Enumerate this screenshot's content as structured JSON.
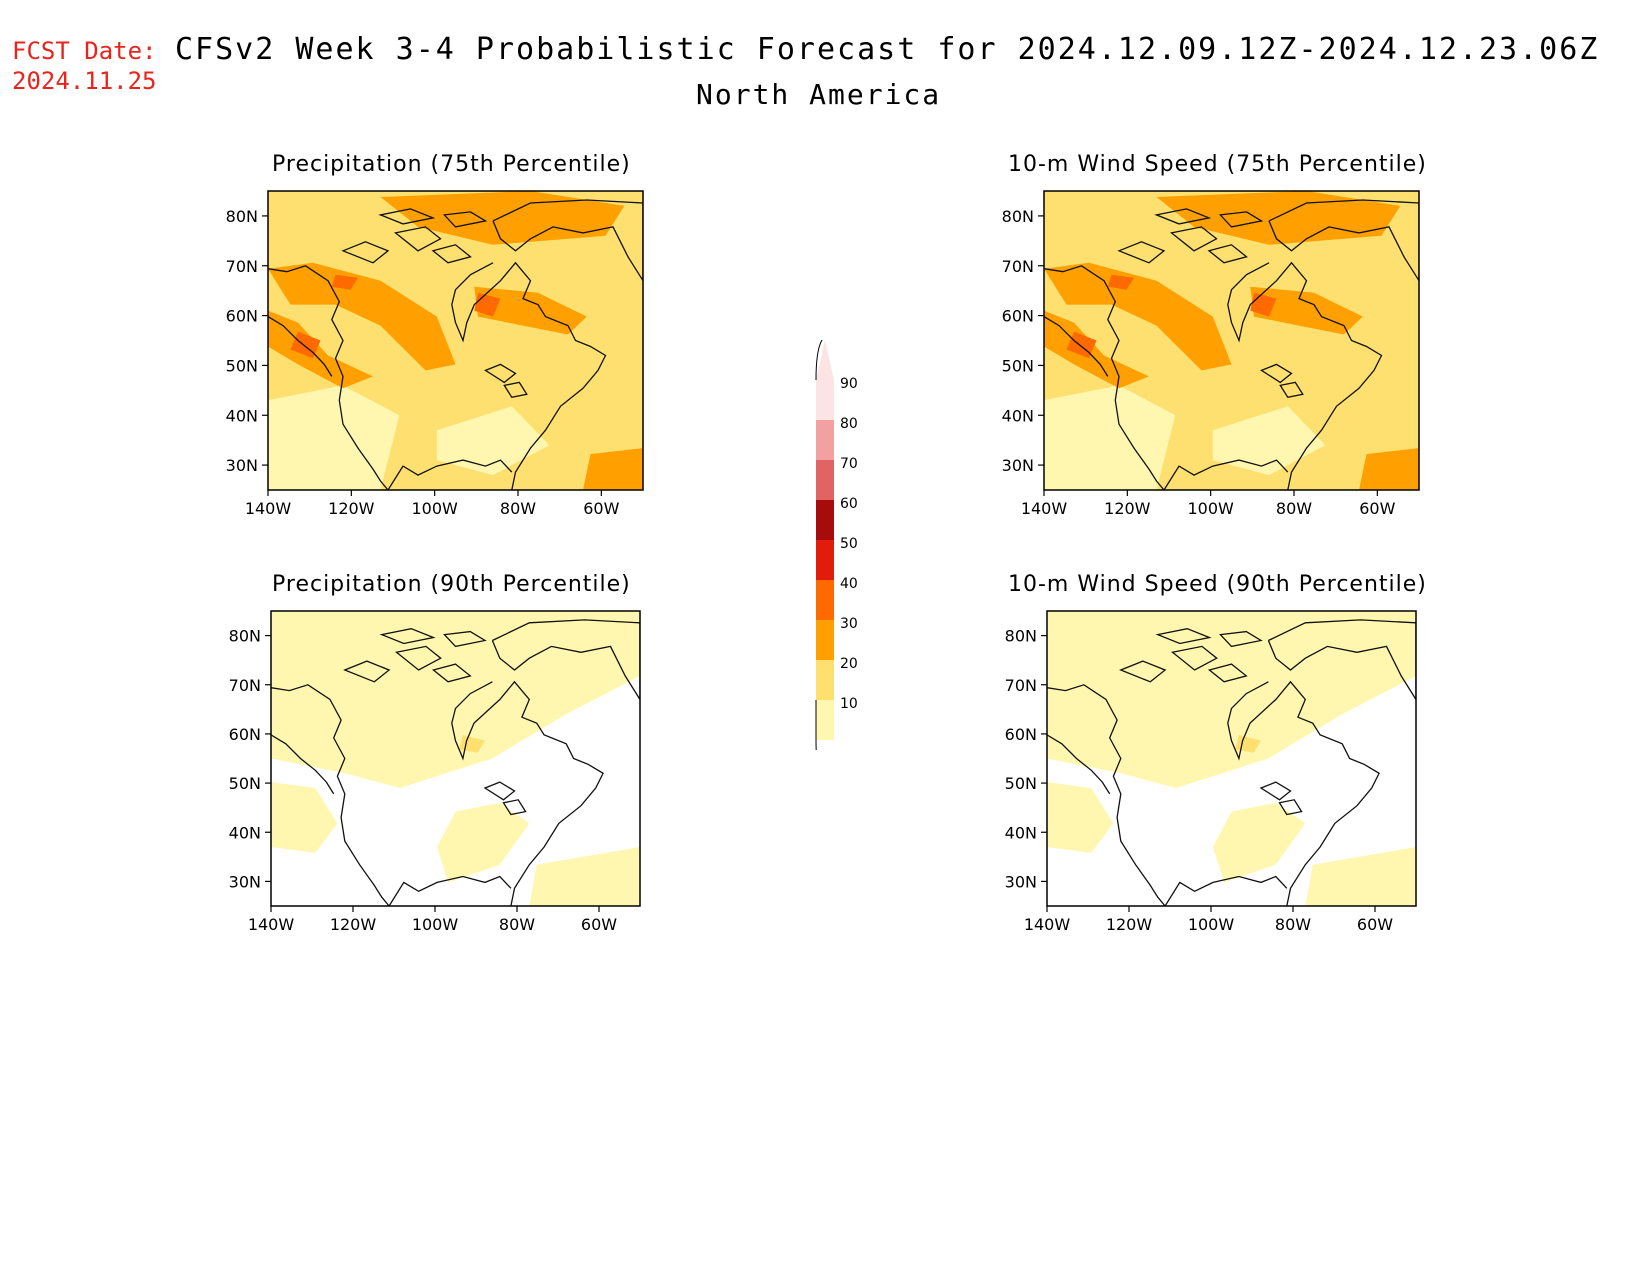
{
  "header": {
    "fcst_label": "FCST Date:",
    "fcst_date": "2024.11.25",
    "title": "CFSv2 Week 3-4 Probabilistic Forecast for 2024.12.09.12Z-2024.12.23.06Z",
    "region": "North America"
  },
  "axes": {
    "lat_ticks": [
      "80N",
      "70N",
      "60N",
      "50N",
      "40N",
      "30N"
    ],
    "lon_ticks": [
      "140W",
      "120W",
      "100W",
      "80W",
      "60W"
    ]
  },
  "panels": [
    {
      "id": "precip-75",
      "title": "Precipitation (75th Percentile)",
      "intensity": "high"
    },
    {
      "id": "wind-75",
      "title": "10-m Wind Speed (75th Percentile)",
      "intensity": "high"
    },
    {
      "id": "precip-90",
      "title": "Precipitation (90th Percentile)",
      "intensity": "low"
    },
    {
      "id": "wind-90",
      "title": "10-m Wind Speed (90th Percentile)",
      "intensity": "low"
    }
  ],
  "colorbar": {
    "levels": [
      "90",
      "80",
      "70",
      "60",
      "50",
      "40",
      "30",
      "20",
      "10"
    ],
    "colors": [
      "#fde4e4",
      "#f2a0a0",
      "#e06464",
      "#a60c0c",
      "#e21c0a",
      "#ff6a00",
      "#ffa000",
      "#fde070",
      "#fff7b0"
    ]
  }
}
